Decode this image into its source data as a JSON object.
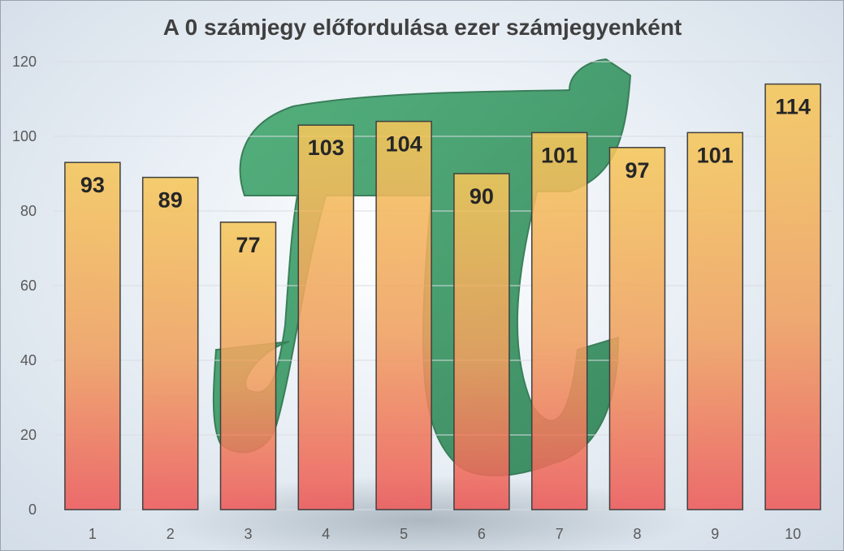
{
  "chart_data": {
    "type": "bar",
    "title": "A 0 számjegy előfordulása ezer számjegyenként",
    "xlabel": "",
    "ylabel": "",
    "categories": [
      "1",
      "2",
      "3",
      "4",
      "5",
      "6",
      "7",
      "8",
      "9",
      "10"
    ],
    "values": [
      93,
      89,
      77,
      103,
      104,
      90,
      101,
      97,
      101,
      114
    ],
    "value_labels": [
      "93",
      "89",
      "77",
      "103",
      "104",
      "90",
      "101",
      "97",
      "101",
      "114"
    ],
    "ylim": [
      0,
      120
    ],
    "yticks": [
      "0",
      "20",
      "40",
      "60",
      "80",
      "100",
      "120"
    ],
    "grid": true,
    "legend": "none",
    "data_labels_position": "inside-top",
    "colors": {
      "bar_top": "#f5c75a",
      "bar_mid": "#f0a060",
      "bar_bottom": "#ee5a5a",
      "bar_border": "#404040",
      "background_symbol": "#2e9b5e"
    },
    "background_symbol_icon": "pi-symbol-icon"
  }
}
